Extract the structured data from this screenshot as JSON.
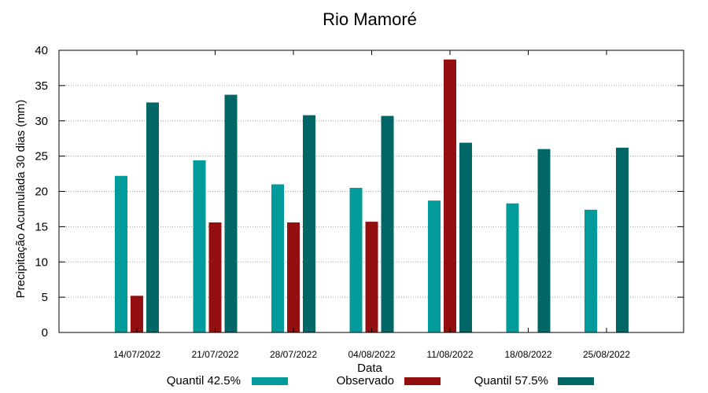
{
  "chart_data": {
    "type": "bar",
    "title": "Rio Mamoré",
    "xlabel": "Data",
    "ylabel": "Precipitação Acumulada 30 dias (mm)",
    "ylim": [
      0,
      40
    ],
    "yticks": [
      0,
      5,
      10,
      15,
      20,
      25,
      30,
      35,
      40
    ],
    "grid": true,
    "legend_position": "bottom",
    "categories": [
      "14/07/2022",
      "21/07/2022",
      "28/07/2022",
      "04/08/2022",
      "11/08/2022",
      "18/08/2022",
      "25/08/2022"
    ],
    "series": [
      {
        "name": "Quantil 42.5%",
        "color": "#009b9a",
        "values": [
          22.2,
          24.4,
          21.0,
          20.5,
          18.7,
          18.3,
          17.4
        ]
      },
      {
        "name": "Observado",
        "color": "#940f0f",
        "values": [
          5.2,
          15.6,
          15.6,
          15.7,
          38.7,
          null,
          null
        ]
      },
      {
        "name": "Quantil 57.5%",
        "color": "#006666",
        "values": [
          32.6,
          33.7,
          30.8,
          30.7,
          26.9,
          26.0,
          26.2
        ]
      }
    ]
  }
}
